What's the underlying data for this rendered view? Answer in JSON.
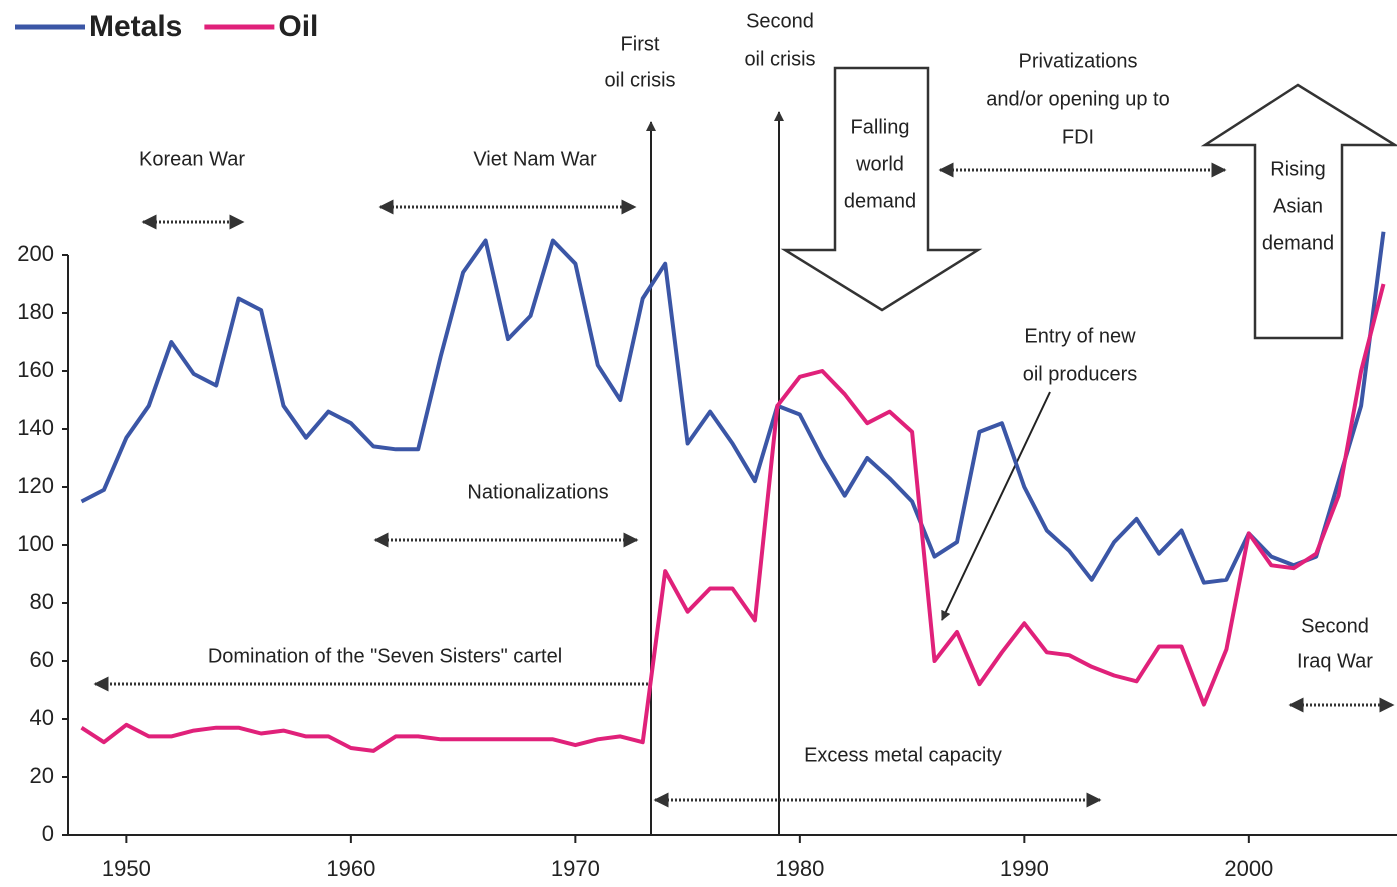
{
  "chart_data": {
    "type": "line",
    "x": [
      1948,
      1949,
      1950,
      1951,
      1952,
      1953,
      1954,
      1955,
      1956,
      1957,
      1958,
      1959,
      1960,
      1961,
      1962,
      1963,
      1964,
      1965,
      1966,
      1967,
      1968,
      1969,
      1970,
      1971,
      1972,
      1973,
      1974,
      1975,
      1976,
      1977,
      1978,
      1979,
      1980,
      1981,
      1982,
      1983,
      1984,
      1985,
      1986,
      1987,
      1988,
      1989,
      1990,
      1991,
      1992,
      1993,
      1994,
      1995,
      1996,
      1997,
      1998,
      1999,
      2000,
      2001,
      2002,
      2003,
      2004,
      2005,
      2006
    ],
    "series": [
      {
        "name": "Metals",
        "color": "#3b56a6",
        "values": [
          115,
          119,
          137,
          148,
          170,
          159,
          155,
          185,
          181,
          148,
          137,
          146,
          142,
          134,
          133,
          133,
          165,
          194,
          205,
          171,
          179,
          205,
          197,
          162,
          150,
          185,
          197,
          135,
          146,
          135,
          122,
          148,
          145,
          130,
          117,
          130,
          123,
          115,
          96,
          101,
          139,
          142,
          120,
          105,
          98,
          88,
          101,
          109,
          97,
          105,
          87,
          88,
          104,
          96,
          93,
          96,
          122,
          148,
          208
        ]
      },
      {
        "name": "Oil",
        "color": "#e0217a",
        "values": [
          37,
          32,
          38,
          34,
          34,
          36,
          37,
          37,
          35,
          36,
          34,
          34,
          30,
          29,
          34,
          34,
          33,
          33,
          33,
          33,
          33,
          33,
          31,
          33,
          34,
          32,
          91,
          77,
          85,
          85,
          74,
          148,
          158,
          160,
          152,
          142,
          146,
          139,
          60,
          70,
          52,
          63,
          73,
          63,
          62,
          58,
          55,
          53,
          65,
          65,
          45,
          64,
          104,
          93,
          92,
          97,
          117,
          160,
          190
        ]
      }
    ],
    "xlim": [
      1947.4,
      2006.6
    ],
    "xticks": [
      1950,
      1960,
      1970,
      1980,
      1990,
      2000
    ],
    "ylim": [
      0,
      200
    ],
    "yticks": [
      0,
      20,
      40,
      60,
      80,
      100,
      120,
      140,
      160,
      180,
      200
    ],
    "grid": false,
    "legend": "top-left",
    "annotations": [
      {
        "lines": [
          "Korean War"
        ]
      },
      {
        "lines": [
          "Viet Nam War"
        ]
      },
      {
        "lines": [
          "First",
          "oil crisis"
        ]
      },
      {
        "lines": [
          "Second",
          "oil crisis"
        ]
      },
      {
        "lines": [
          "Falling",
          "world",
          "demand"
        ]
      },
      {
        "lines": [
          "Privatizations",
          "and/or opening up to",
          "FDI"
        ]
      },
      {
        "lines": [
          "Rising",
          "Asian",
          "demand"
        ]
      },
      {
        "lines": [
          "Nationalizations"
        ]
      },
      {
        "lines": [
          "Entry of new",
          "oil producers"
        ]
      },
      {
        "lines": [
          "Domination of the \"Seven Sisters\" cartel"
        ]
      },
      {
        "lines": [
          "Second",
          "Iraq War"
        ]
      },
      {
        "lines": [
          "Excess metal capacity"
        ]
      }
    ]
  }
}
